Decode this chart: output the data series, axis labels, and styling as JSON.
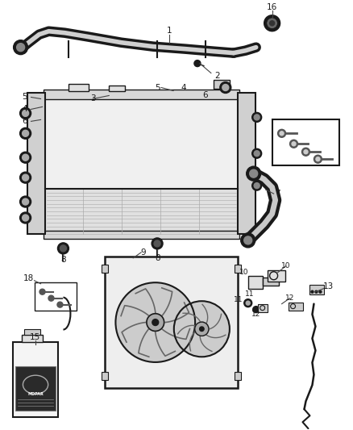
{
  "bg_color": "#ffffff",
  "fig_width": 4.38,
  "fig_height": 5.33,
  "dpi": 100,
  "draw_color": "#1a1a1a",
  "gray1": "#888888",
  "gray2": "#aaaaaa",
  "gray3": "#cccccc",
  "gray4": "#e0e0e0",
  "gray5": "#f0f0f0"
}
